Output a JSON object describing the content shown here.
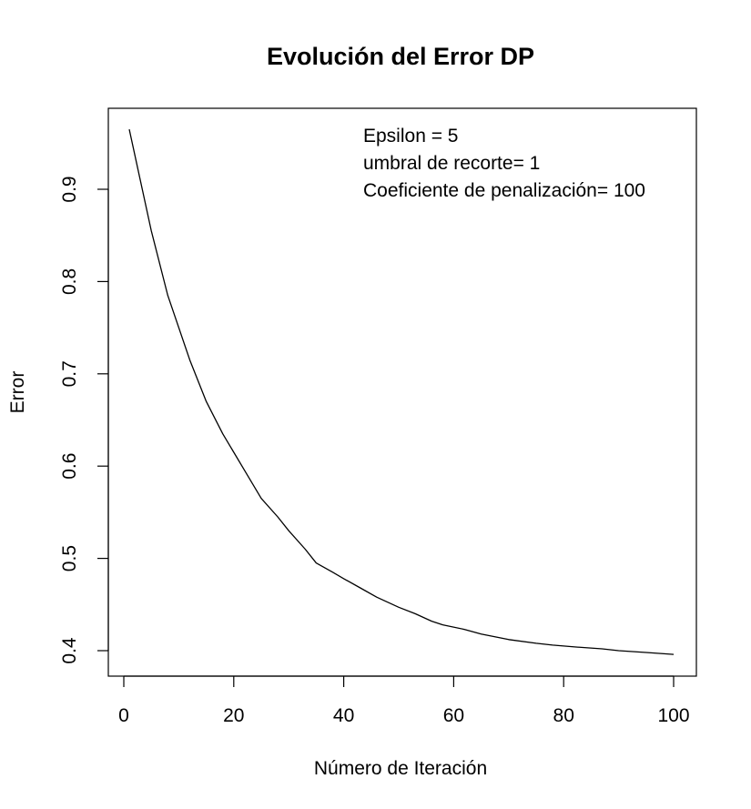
{
  "chart_data": {
    "type": "line",
    "title": "Evolución del Error DP",
    "xlabel": "Número de Iteración",
    "ylabel": "Error",
    "xlim": [
      0,
      100
    ],
    "ylim": [
      0.4,
      0.9
    ],
    "xticks": [
      0,
      20,
      40,
      60,
      80,
      100
    ],
    "yticks": [
      0.4,
      0.5,
      0.6,
      0.7,
      0.8,
      0.9
    ],
    "xtick_labels": [
      "0",
      "20",
      "40",
      "60",
      "80",
      "100"
    ],
    "ytick_labels": [
      "0.4",
      "0.5",
      "0.6",
      "0.7",
      "0.8",
      "0.9"
    ],
    "grid": false,
    "annotations": [
      "Epsilon = 5",
      "umbral de recorte= 1",
      "Coeficiente de penalización= 100"
    ],
    "series": [
      {
        "x": [
          1,
          3,
          5,
          8,
          10,
          12,
          15,
          18,
          20,
          22,
          25,
          28,
          30,
          33,
          35,
          38,
          40,
          43,
          46,
          50,
          53,
          56,
          58,
          62,
          65,
          70,
          75,
          78,
          82,
          87,
          90,
          95,
          100
        ],
        "values": [
          0.965,
          0.91,
          0.855,
          0.785,
          0.75,
          0.715,
          0.67,
          0.635,
          0.615,
          0.595,
          0.565,
          0.545,
          0.53,
          0.51,
          0.495,
          0.485,
          0.478,
          0.468,
          0.458,
          0.447,
          0.44,
          0.432,
          0.428,
          0.423,
          0.418,
          0.412,
          0.408,
          0.406,
          0.404,
          0.402,
          0.4,
          0.398,
          0.396
        ]
      }
    ]
  }
}
